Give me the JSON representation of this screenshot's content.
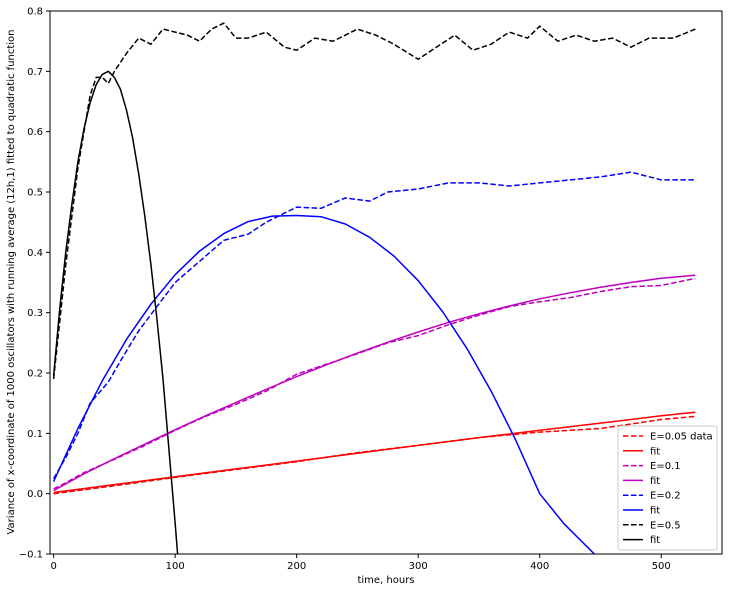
{
  "chart_data": {
    "type": "line",
    "xlabel": "time, hours",
    "ylabel": "Variance of x-coordinate of 1000 oscillators with running average (12h,1) fitted to quadratic function",
    "xlim": [
      -3,
      550
    ],
    "ylim": [
      -0.1,
      0.8
    ],
    "xticks": [
      0,
      100,
      200,
      300,
      400,
      500
    ],
    "yticks": [
      -0.1,
      0.0,
      0.1,
      0.2,
      0.3,
      0.4,
      0.5,
      0.6,
      0.7,
      0.8
    ],
    "xtick_labels": [
      "0",
      "100",
      "200",
      "300",
      "400",
      "500"
    ],
    "ytick_labels": [
      "−0.1",
      "0.0",
      "0.1",
      "0.2",
      "0.3",
      "0.4",
      "0.5",
      "0.6",
      "0.7",
      "0.8"
    ],
    "grid": false,
    "legend_position": "lower-right",
    "series": [
      {
        "name": "E=0.05 data",
        "color": "#ff0000",
        "style": "dashed",
        "x": [
          0,
          50,
          100,
          150,
          200,
          250,
          300,
          350,
          400,
          450,
          500,
          528
        ],
        "y": [
          0.0,
          0.013,
          0.027,
          0.04,
          0.053,
          0.068,
          0.08,
          0.093,
          0.102,
          0.108,
          0.123,
          0.128
        ]
      },
      {
        "name": "fit",
        "color": "#ff0000",
        "style": "solid",
        "x": [
          0,
          50,
          100,
          150,
          200,
          250,
          300,
          350,
          400,
          450,
          500,
          528
        ],
        "y": [
          0.002,
          0.015,
          0.028,
          0.041,
          0.054,
          0.067,
          0.08,
          0.093,
          0.105,
          0.117,
          0.129,
          0.135
        ]
      },
      {
        "name": "E=0.1",
        "color": "#bf00bf",
        "style": "dashed",
        "x": [
          0,
          10,
          25,
          50,
          75,
          100,
          125,
          150,
          175,
          200,
          225,
          250,
          275,
          300,
          325,
          350,
          375,
          400,
          425,
          450,
          475,
          500,
          528
        ],
        "y": [
          0.008,
          0.018,
          0.035,
          0.057,
          0.08,
          0.105,
          0.128,
          0.148,
          0.17,
          0.198,
          0.215,
          0.232,
          0.25,
          0.262,
          0.28,
          0.296,
          0.31,
          0.318,
          0.325,
          0.335,
          0.343,
          0.345,
          0.357
        ]
      },
      {
        "name": "fit",
        "color": "#bf00bf",
        "style": "solid",
        "x": [
          0,
          25,
          50,
          75,
          100,
          125,
          150,
          175,
          200,
          225,
          250,
          275,
          300,
          325,
          350,
          375,
          400,
          425,
          450,
          475,
          500,
          528
        ],
        "y": [
          0.005,
          0.033,
          0.058,
          0.082,
          0.106,
          0.129,
          0.151,
          0.173,
          0.194,
          0.214,
          0.233,
          0.251,
          0.268,
          0.284,
          0.298,
          0.311,
          0.323,
          0.333,
          0.342,
          0.35,
          0.357,
          0.362
        ]
      },
      {
        "name": "E=0.2",
        "color": "#0000ff",
        "style": "dashed",
        "x": [
          0,
          10,
          20,
          30,
          45,
          55,
          70,
          85,
          100,
          120,
          140,
          160,
          175,
          190,
          200,
          220,
          240,
          260,
          275,
          300,
          325,
          350,
          375,
          400,
          425,
          450,
          475,
          500,
          528
        ],
        "y": [
          0.025,
          0.06,
          0.1,
          0.15,
          0.185,
          0.22,
          0.27,
          0.31,
          0.35,
          0.385,
          0.42,
          0.43,
          0.45,
          0.465,
          0.475,
          0.473,
          0.49,
          0.485,
          0.5,
          0.505,
          0.515,
          0.515,
          0.51,
          0.515,
          0.52,
          0.525,
          0.533,
          0.52,
          0.52
        ]
      },
      {
        "name": "fit",
        "color": "#0000ff",
        "style": "solid",
        "x": [
          0,
          20,
          40,
          60,
          80,
          100,
          120,
          140,
          160,
          180,
          200,
          210,
          220,
          240,
          260,
          280,
          300,
          320,
          340,
          360,
          380,
          400,
          420,
          445
        ],
        "y": [
          0.02,
          0.108,
          0.187,
          0.256,
          0.314,
          0.363,
          0.402,
          0.431,
          0.451,
          0.46,
          0.461,
          0.46,
          0.459,
          0.447,
          0.425,
          0.394,
          0.353,
          0.302,
          0.241,
          0.17,
          0.09,
          0.0,
          -0.05,
          -0.1
        ]
      },
      {
        "name": "E=0.5",
        "color": "#000000",
        "style": "dashed",
        "x": [
          0,
          10,
          20,
          30,
          35,
          40,
          45,
          50,
          60,
          70,
          80,
          90,
          100,
          110,
          120,
          130,
          140,
          150,
          160,
          175,
          190,
          200,
          215,
          230,
          250,
          265,
          280,
          300,
          315,
          330,
          345,
          360,
          375,
          390,
          400,
          415,
          430,
          445,
          460,
          475,
          490,
          510,
          528
        ],
        "y": [
          0.19,
          0.38,
          0.54,
          0.66,
          0.69,
          0.69,
          0.68,
          0.7,
          0.73,
          0.755,
          0.745,
          0.77,
          0.765,
          0.76,
          0.75,
          0.77,
          0.78,
          0.755,
          0.755,
          0.765,
          0.74,
          0.735,
          0.755,
          0.75,
          0.77,
          0.76,
          0.745,
          0.72,
          0.74,
          0.76,
          0.735,
          0.745,
          0.765,
          0.755,
          0.775,
          0.75,
          0.76,
          0.75,
          0.755,
          0.74,
          0.755,
          0.755,
          0.77
        ]
      },
      {
        "name": "fit",
        "color": "#000000",
        "style": "solid",
        "x": [
          0,
          5,
          10,
          15,
          20,
          25,
          30,
          35,
          40,
          45,
          50,
          55,
          60,
          65,
          70,
          75,
          80,
          85,
          90,
          95,
          100,
          102
        ],
        "y": [
          0.195,
          0.306,
          0.401,
          0.48,
          0.55,
          0.605,
          0.648,
          0.678,
          0.695,
          0.7,
          0.69,
          0.67,
          0.635,
          0.59,
          0.53,
          0.46,
          0.38,
          0.29,
          0.19,
          0.07,
          -0.05,
          -0.1
        ]
      }
    ]
  }
}
